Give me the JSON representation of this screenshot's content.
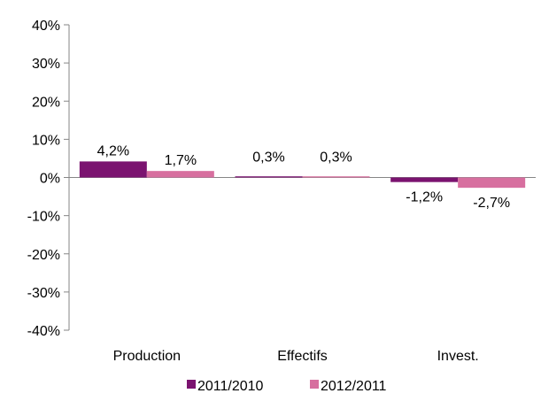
{
  "chart_data": {
    "type": "bar",
    "categories": [
      "Production",
      "Effectifs",
      "Invest."
    ],
    "series": [
      {
        "name": "2011/2010",
        "values": [
          4.2,
          0.3,
          -1.2
        ],
        "labels": [
          "4,2%",
          "0,3%",
          "-1,2%"
        ],
        "color": "#7b1370"
      },
      {
        "name": "2012/2011",
        "values": [
          1.7,
          0.3,
          -2.7
        ],
        "labels": [
          "1,7%",
          "0,3%",
          "-2,7%"
        ],
        "color": "#d76f9f"
      }
    ],
    "ylim": [
      -40,
      40
    ],
    "yticks": [
      40,
      30,
      20,
      10,
      0,
      -10,
      -20,
      -30,
      -40
    ],
    "ytick_labels": [
      "40%",
      "30%",
      "20%",
      "10%",
      "0%",
      "-10%",
      "-20%",
      "-30%",
      "-40%"
    ],
    "grid": false,
    "legend_position": "bottom",
    "title": "",
    "xlabel": "",
    "ylabel": ""
  }
}
